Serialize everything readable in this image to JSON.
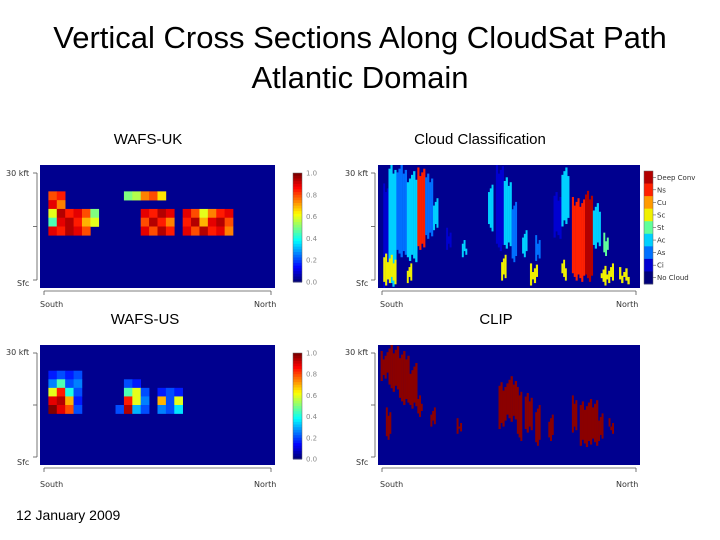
{
  "title_line1": "Vertical Cross Sections Along CloudSat Path",
  "title_line2": "Atlantic Domain",
  "footnote": "12 January 2009",
  "chart_data": [
    {
      "type": "heatmap",
      "title": "WAFS-UK",
      "y_top_label": "30 kft",
      "y_bottom_label": "Sfc",
      "x_left_label": "South",
      "x_right_label": "North",
      "colorbar_ticks": [
        "1.0",
        "0.8",
        "0.6",
        "0.4",
        "0.2",
        "0.0"
      ],
      "cells": [
        {
          "col": 1,
          "row": 3,
          "value": 0.8
        },
        {
          "col": 2,
          "row": 3,
          "value": 0.85
        },
        {
          "col": 1,
          "row": 4,
          "value": 0.9
        },
        {
          "col": 2,
          "row": 4,
          "value": 0.75
        },
        {
          "col": 1,
          "row": 5,
          "value": 0.6
        },
        {
          "col": 2,
          "row": 5,
          "value": 0.95
        },
        {
          "col": 3,
          "row": 5,
          "value": 0.85
        },
        {
          "col": 4,
          "row": 5,
          "value": 0.9
        },
        {
          "col": 5,
          "row": 5,
          "value": 0.8
        },
        {
          "col": 6,
          "row": 5,
          "value": 0.5
        },
        {
          "col": 1,
          "row": 6,
          "value": 0.45
        },
        {
          "col": 2,
          "row": 6,
          "value": 0.9
        },
        {
          "col": 3,
          "row": 6,
          "value": 0.95
        },
        {
          "col": 4,
          "row": 6,
          "value": 0.85
        },
        {
          "col": 5,
          "row": 6,
          "value": 0.7
        },
        {
          "col": 6,
          "row": 6,
          "value": 0.6
        },
        {
          "col": 1,
          "row": 7,
          "value": 0.9
        },
        {
          "col": 2,
          "row": 7,
          "value": 0.85
        },
        {
          "col": 3,
          "row": 7,
          "value": 0.95
        },
        {
          "col": 4,
          "row": 7,
          "value": 0.9
        },
        {
          "col": 5,
          "row": 7,
          "value": 0.8
        },
        {
          "col": 10,
          "row": 3,
          "value": 0.5
        },
        {
          "col": 11,
          "row": 3,
          "value": 0.55
        },
        {
          "col": 12,
          "row": 3,
          "value": 0.75
        },
        {
          "col": 13,
          "row": 3,
          "value": 0.8
        },
        {
          "col": 14,
          "row": 3,
          "value": 0.65
        },
        {
          "col": 12,
          "row": 5,
          "value": 0.9
        },
        {
          "col": 13,
          "row": 5,
          "value": 0.85
        },
        {
          "col": 14,
          "row": 5,
          "value": 0.95
        },
        {
          "col": 15,
          "row": 5,
          "value": 0.9
        },
        {
          "col": 12,
          "row": 6,
          "value": 0.8
        },
        {
          "col": 13,
          "row": 6,
          "value": 0.95
        },
        {
          "col": 14,
          "row": 6,
          "value": 0.85
        },
        {
          "col": 15,
          "row": 6,
          "value": 0.75
        },
        {
          "col": 12,
          "row": 7,
          "value": 0.9
        },
        {
          "col": 13,
          "row": 7,
          "value": 0.8
        },
        {
          "col": 14,
          "row": 7,
          "value": 0.95
        },
        {
          "col": 15,
          "row": 7,
          "value": 0.85
        },
        {
          "col": 17,
          "row": 5,
          "value": 0.9
        },
        {
          "col": 18,
          "row": 5,
          "value": 0.8
        },
        {
          "col": 19,
          "row": 5,
          "value": 0.6
        },
        {
          "col": 20,
          "row": 5,
          "value": 0.75
        },
        {
          "col": 21,
          "row": 5,
          "value": 0.85
        },
        {
          "col": 22,
          "row": 5,
          "value": 0.9
        },
        {
          "col": 17,
          "row": 6,
          "value": 0.85
        },
        {
          "col": 18,
          "row": 6,
          "value": 0.95
        },
        {
          "col": 19,
          "row": 6,
          "value": 0.7
        },
        {
          "col": 20,
          "row": 6,
          "value": 0.9
        },
        {
          "col": 21,
          "row": 6,
          "value": 0.95
        },
        {
          "col": 22,
          "row": 6,
          "value": 0.8
        },
        {
          "col": 17,
          "row": 7,
          "value": 0.9
        },
        {
          "col": 18,
          "row": 7,
          "value": 0.8
        },
        {
          "col": 19,
          "row": 7,
          "value": 0.95
        },
        {
          "col": 20,
          "row": 7,
          "value": 0.85
        },
        {
          "col": 21,
          "row": 7,
          "value": 0.9
        },
        {
          "col": 22,
          "row": 7,
          "value": 0.75
        }
      ]
    },
    {
      "type": "heatmap",
      "title": "Cloud Classification",
      "y_top_label": "30 kft",
      "y_bottom_label": "Sfc",
      "x_left_label": "South",
      "x_right_label": "North",
      "legend": [
        "Deep Conv",
        "Ns",
        "Cu",
        "Sc",
        "St",
        "Ac",
        "As",
        "Ci",
        "No Cloud"
      ],
      "legend_colors": [
        "#b30000",
        "#ff2000",
        "#ff9a00",
        "#f0f000",
        "#60ff9a",
        "#00d0ff",
        "#0070ff",
        "#0000d0",
        "#00007a"
      ],
      "cloud_columns": [
        {
          "x": 0.02,
          "w": 0.02,
          "top": 0.15,
          "bottom": 1.0,
          "class": "Ci"
        },
        {
          "x": 0.04,
          "w": 0.03,
          "top": 0.0,
          "bottom": 1.0,
          "class": "Ac"
        },
        {
          "x": 0.07,
          "w": 0.04,
          "top": 0.0,
          "bottom": 0.75,
          "class": "As"
        },
        {
          "x": 0.11,
          "w": 0.04,
          "top": 0.05,
          "bottom": 0.8,
          "class": "Ac"
        },
        {
          "x": 0.15,
          "w": 0.03,
          "top": 0.0,
          "bottom": 0.7,
          "class": "Ns"
        },
        {
          "x": 0.18,
          "w": 0.03,
          "top": 0.05,
          "bottom": 0.6,
          "class": "As"
        },
        {
          "x": 0.21,
          "w": 0.02,
          "top": 0.25,
          "bottom": 0.55,
          "class": "Ac"
        },
        {
          "x": 0.26,
          "w": 0.02,
          "top": 0.5,
          "bottom": 0.7,
          "class": "Ci"
        },
        {
          "x": 0.32,
          "w": 0.02,
          "top": 0.6,
          "bottom": 0.75,
          "class": "Ac"
        },
        {
          "x": 0.42,
          "w": 0.02,
          "top": 0.15,
          "bottom": 0.55,
          "class": "Ac"
        },
        {
          "x": 0.45,
          "w": 0.03,
          "top": 0.0,
          "bottom": 0.7,
          "class": "Ci"
        },
        {
          "x": 0.48,
          "w": 0.03,
          "top": 0.1,
          "bottom": 0.7,
          "class": "Ac"
        },
        {
          "x": 0.51,
          "w": 0.02,
          "top": 0.3,
          "bottom": 0.8,
          "class": "As"
        },
        {
          "x": 0.55,
          "w": 0.02,
          "top": 0.5,
          "bottom": 0.75,
          "class": "Ac"
        },
        {
          "x": 0.6,
          "w": 0.02,
          "top": 0.55,
          "bottom": 0.8,
          "class": "As"
        },
        {
          "x": 0.67,
          "w": 0.03,
          "top": 0.2,
          "bottom": 0.6,
          "class": "Ci"
        },
        {
          "x": 0.7,
          "w": 0.03,
          "top": 0.0,
          "bottom": 0.5,
          "class": "Ac"
        },
        {
          "x": 0.74,
          "w": 0.05,
          "top": 0.25,
          "bottom": 0.95,
          "class": "Ns"
        },
        {
          "x": 0.79,
          "w": 0.03,
          "top": 0.2,
          "bottom": 0.95,
          "class": "Deep Conv"
        },
        {
          "x": 0.82,
          "w": 0.03,
          "top": 0.3,
          "bottom": 0.7,
          "class": "Ac"
        },
        {
          "x": 0.86,
          "w": 0.02,
          "top": 0.55,
          "bottom": 0.75,
          "class": "St"
        }
      ],
      "low_cloud_patches": [
        {
          "x": 0.02,
          "w": 0.05,
          "top": 0.72,
          "bottom": 0.98,
          "class": "Sc"
        },
        {
          "x": 0.11,
          "w": 0.02,
          "top": 0.8,
          "bottom": 0.98,
          "class": "Sc"
        },
        {
          "x": 0.47,
          "w": 0.02,
          "top": 0.7,
          "bottom": 0.95,
          "class": "Sc"
        },
        {
          "x": 0.58,
          "w": 0.03,
          "top": 0.78,
          "bottom": 0.98,
          "class": "Sc"
        },
        {
          "x": 0.7,
          "w": 0.02,
          "top": 0.75,
          "bottom": 0.95,
          "class": "Sc"
        },
        {
          "x": 0.85,
          "w": 0.05,
          "top": 0.8,
          "bottom": 0.98,
          "class": "Sc"
        },
        {
          "x": 0.92,
          "w": 0.04,
          "top": 0.82,
          "bottom": 0.98,
          "class": "Sc"
        }
      ]
    },
    {
      "type": "heatmap",
      "title": "WAFS-US",
      "y_top_label": "30 kft",
      "y_bottom_label": "Sfc",
      "x_left_label": "South",
      "x_right_label": "North",
      "colorbar_ticks": [
        "1.0",
        "0.8",
        "0.6",
        "0.4",
        "0.2",
        "0.0"
      ],
      "cells": [
        {
          "col": 1,
          "row": 3,
          "value": 0.15
        },
        {
          "col": 2,
          "row": 3,
          "value": 0.2
        },
        {
          "col": 3,
          "row": 3,
          "value": 0.15
        },
        {
          "col": 4,
          "row": 3,
          "value": 0.2
        },
        {
          "col": 1,
          "row": 4,
          "value": 0.25
        },
        {
          "col": 2,
          "row": 4,
          "value": 0.45
        },
        {
          "col": 3,
          "row": 4,
          "value": 0.2
        },
        {
          "col": 4,
          "row": 4,
          "value": 0.25
        },
        {
          "col": 1,
          "row": 5,
          "value": 0.6
        },
        {
          "col": 2,
          "row": 5,
          "value": 0.85
        },
        {
          "col": 3,
          "row": 5,
          "value": 0.4
        },
        {
          "col": 4,
          "row": 5,
          "value": 0.2
        },
        {
          "col": 1,
          "row": 6,
          "value": 0.9
        },
        {
          "col": 2,
          "row": 6,
          "value": 0.95
        },
        {
          "col": 3,
          "row": 6,
          "value": 0.7
        },
        {
          "col": 4,
          "row": 6,
          "value": 0.15
        },
        {
          "col": 1,
          "row": 7,
          "value": 1.0
        },
        {
          "col": 2,
          "row": 7,
          "value": 0.9
        },
        {
          "col": 3,
          "row": 7,
          "value": 0.8
        },
        {
          "col": 4,
          "row": 7,
          "value": 0.2
        },
        {
          "col": 10,
          "row": 4,
          "value": 0.2
        },
        {
          "col": 11,
          "row": 4,
          "value": 0.15
        },
        {
          "col": 10,
          "row": 5,
          "value": 0.45
        },
        {
          "col": 11,
          "row": 5,
          "value": 0.6
        },
        {
          "col": 12,
          "row": 5,
          "value": 0.2
        },
        {
          "col": 10,
          "row": 6,
          "value": 0.85
        },
        {
          "col": 11,
          "row": 6,
          "value": 0.6
        },
        {
          "col": 12,
          "row": 6,
          "value": 0.25
        },
        {
          "col": 9,
          "row": 7,
          "value": 0.2
        },
        {
          "col": 10,
          "row": 7,
          "value": 0.95
        },
        {
          "col": 11,
          "row": 7,
          "value": 0.3
        },
        {
          "col": 12,
          "row": 7,
          "value": 0.2
        },
        {
          "col": 14,
          "row": 5,
          "value": 0.15
        },
        {
          "col": 15,
          "row": 5,
          "value": 0.2
        },
        {
          "col": 16,
          "row": 5,
          "value": 0.15
        },
        {
          "col": 14,
          "row": 6,
          "value": 0.7
        },
        {
          "col": 15,
          "row": 6,
          "value": 0.2
        },
        {
          "col": 16,
          "row": 6,
          "value": 0.6
        },
        {
          "col": 14,
          "row": 7,
          "value": 0.25
        },
        {
          "col": 15,
          "row": 7,
          "value": 0.2
        },
        {
          "col": 16,
          "row": 7,
          "value": 0.35
        }
      ]
    },
    {
      "type": "heatmap",
      "title": "CLIP",
      "y_top_label": "30 kft",
      "y_bottom_label": "Sfc",
      "x_left_label": "South",
      "x_right_label": "North",
      "cloud_columns": [
        {
          "x": 0.01,
          "w": 0.03,
          "top": 0.05,
          "bottom": 0.3
        },
        {
          "x": 0.04,
          "w": 0.04,
          "top": 0.0,
          "bottom": 0.4
        },
        {
          "x": 0.08,
          "w": 0.04,
          "top": 0.05,
          "bottom": 0.5
        },
        {
          "x": 0.12,
          "w": 0.03,
          "top": 0.15,
          "bottom": 0.55
        },
        {
          "x": 0.03,
          "w": 0.02,
          "top": 0.5,
          "bottom": 0.8
        },
        {
          "x": 0.15,
          "w": 0.02,
          "top": 0.4,
          "bottom": 0.6
        },
        {
          "x": 0.2,
          "w": 0.02,
          "top": 0.5,
          "bottom": 0.7
        },
        {
          "x": 0.3,
          "w": 0.02,
          "top": 0.6,
          "bottom": 0.75
        },
        {
          "x": 0.46,
          "w": 0.03,
          "top": 0.3,
          "bottom": 0.7
        },
        {
          "x": 0.49,
          "w": 0.04,
          "top": 0.25,
          "bottom": 0.65
        },
        {
          "x": 0.53,
          "w": 0.02,
          "top": 0.35,
          "bottom": 0.8
        },
        {
          "x": 0.56,
          "w": 0.03,
          "top": 0.4,
          "bottom": 0.75
        },
        {
          "x": 0.6,
          "w": 0.02,
          "top": 0.5,
          "bottom": 0.85
        },
        {
          "x": 0.65,
          "w": 0.02,
          "top": 0.55,
          "bottom": 0.8
        },
        {
          "x": 0.74,
          "w": 0.02,
          "top": 0.4,
          "bottom": 0.75
        },
        {
          "x": 0.77,
          "w": 0.07,
          "top": 0.45,
          "bottom": 0.85
        },
        {
          "x": 0.84,
          "w": 0.02,
          "top": 0.55,
          "bottom": 0.8
        },
        {
          "x": 0.88,
          "w": 0.02,
          "top": 0.6,
          "bottom": 0.75
        }
      ]
    }
  ]
}
